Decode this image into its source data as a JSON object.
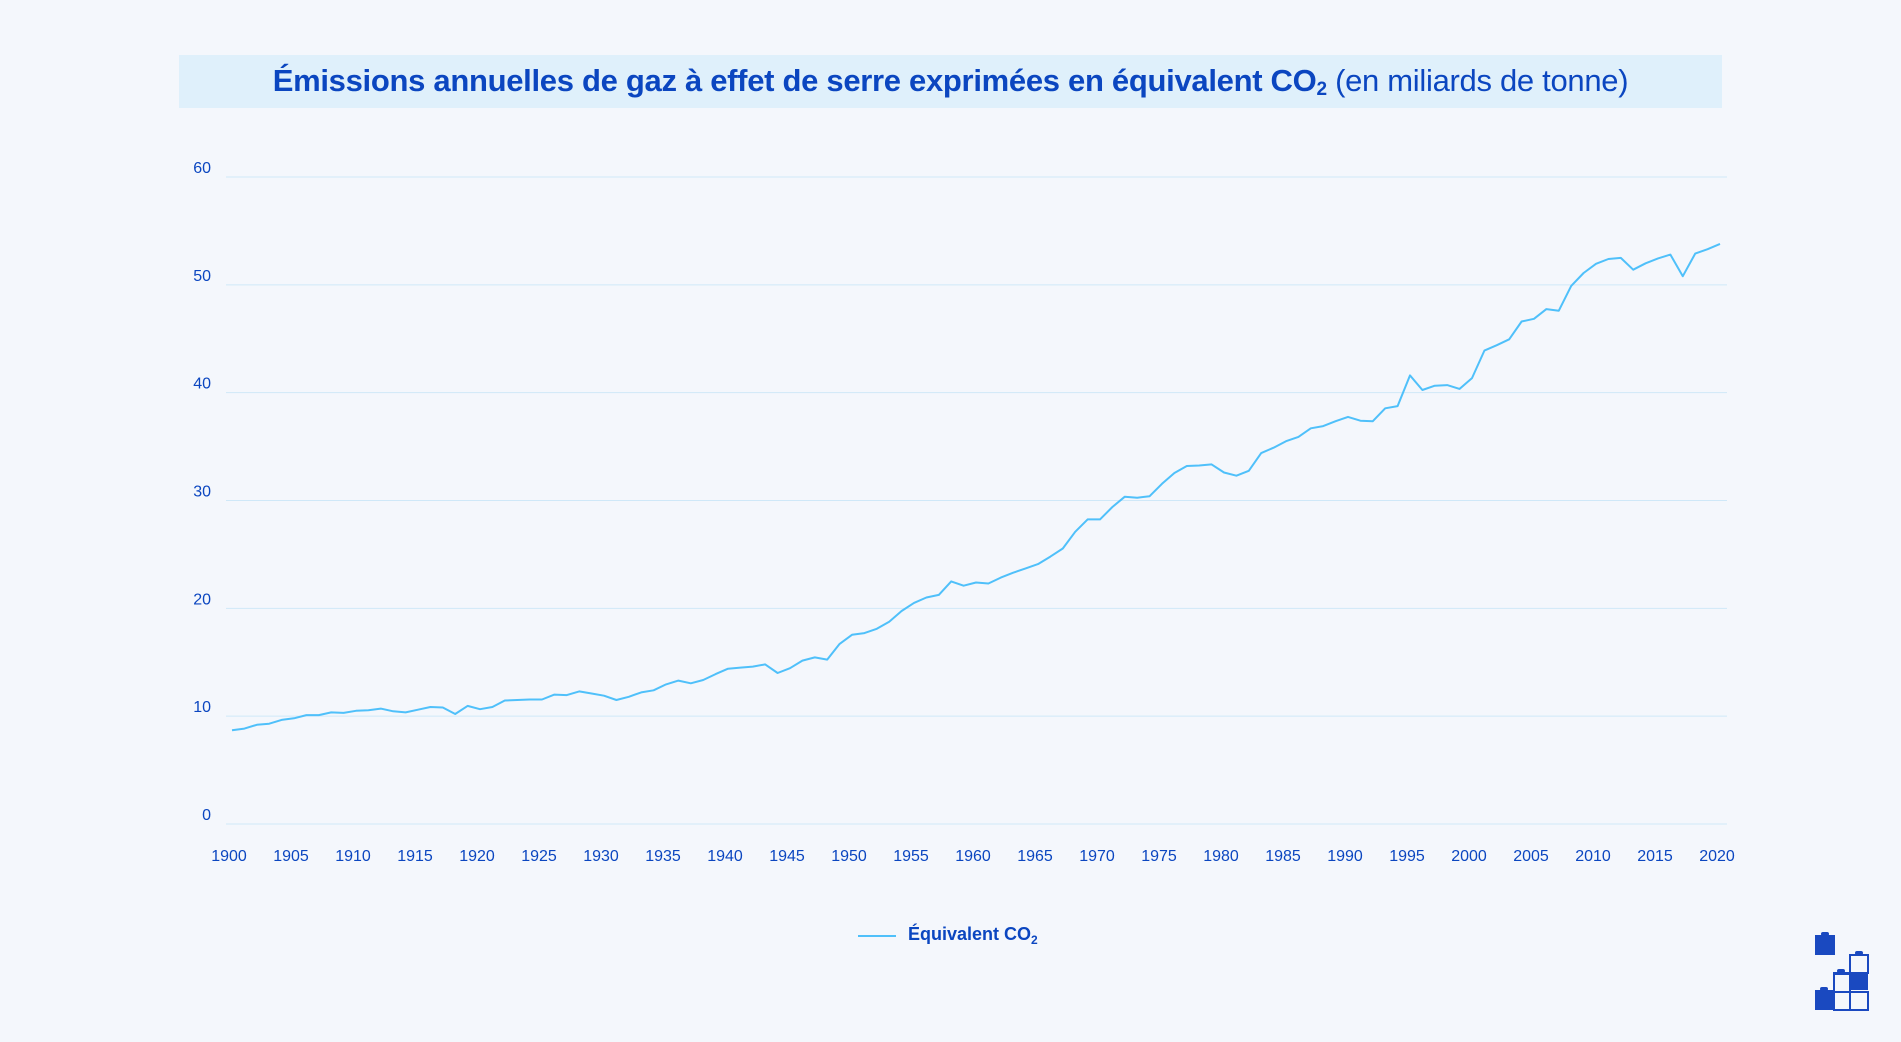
{
  "title": {
    "main": "Émissions annuelles de gaz à effet de serre exprimées en équivalent CO",
    "sub": "2",
    "unit": "(en miliards de tonne)"
  },
  "colors": {
    "line": "#4fc0fa",
    "text": "#0b46c0",
    "grid": "#cfe8f8",
    "title_bg": "#dff0fb",
    "background": "#f4f7fc"
  },
  "logo": {
    "icon": "stacked-blocks-logo"
  },
  "chart_data": {
    "type": "line",
    "title": "Émissions annuelles de gaz à effet de serre exprimées en équivalent CO2 (en miliards de tonne)",
    "xlabel": "",
    "ylabel": "",
    "xlim": [
      1900,
      2020
    ],
    "ylim": [
      0,
      60
    ],
    "grid": true,
    "legend": "bottom-center",
    "x_ticks": [
      "1900",
      "1905",
      "1910",
      "1915",
      "1920",
      "1925",
      "1930",
      "1935",
      "1940",
      "1945",
      "1950",
      "1955",
      "1960",
      "1965",
      "1970",
      "1975",
      "1980",
      "1985",
      "1990",
      "1995",
      "2000",
      "2005",
      "2010",
      "2015",
      "2020"
    ],
    "y_ticks": [
      "0",
      "10",
      "20",
      "30",
      "40",
      "50",
      "60"
    ],
    "x_start": 1900,
    "series": [
      {
        "name": "Équivalent CO2",
        "legend_main": "Équivalent CO",
        "legend_sub": "2",
        "values": [
          8.7,
          8.85,
          9.2,
          9.3,
          9.65,
          9.8,
          10.1,
          10.1,
          10.35,
          10.3,
          10.5,
          10.55,
          10.7,
          10.45,
          10.35,
          10.6,
          10.85,
          10.8,
          10.2,
          10.95,
          10.65,
          10.85,
          11.45,
          11.5,
          11.55,
          11.55,
          12.0,
          11.95,
          12.3,
          12.1,
          11.9,
          11.5,
          11.8,
          12.2,
          12.4,
          12.95,
          13.3,
          13.05,
          13.35,
          13.9,
          14.4,
          14.5,
          14.6,
          14.8,
          14.0,
          14.45,
          15.15,
          15.45,
          15.25,
          16.7,
          17.55,
          17.7,
          18.1,
          18.75,
          19.75,
          20.5,
          21.0,
          21.25,
          22.5,
          22.1,
          22.4,
          22.3,
          22.85,
          23.3,
          23.7,
          24.1,
          24.8,
          25.55,
          27.1,
          28.25,
          28.25,
          29.4,
          30.35,
          30.25,
          30.4,
          31.55,
          32.55,
          33.2,
          33.25,
          33.35,
          32.6,
          32.3,
          32.75,
          34.4,
          34.9,
          35.5,
          35.9,
          36.7,
          36.9,
          37.35,
          37.75,
          37.4,
          37.35,
          38.55,
          38.75,
          41.6,
          40.25,
          40.65,
          40.7,
          40.35,
          41.35,
          43.9,
          44.4,
          44.95,
          46.6,
          46.85,
          47.75,
          47.6,
          49.9,
          51.1,
          51.95,
          52.4,
          52.5,
          51.4,
          52.0,
          52.45,
          52.8,
          50.8,
          52.9,
          53.3,
          53.8
        ]
      }
    ]
  }
}
